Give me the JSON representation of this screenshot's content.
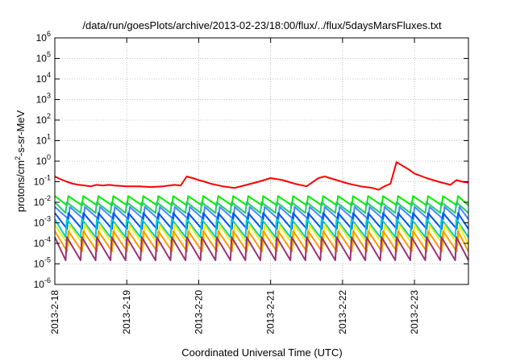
{
  "chart_data": {
    "type": "line",
    "title": "/data/run/goesPlots/archive/2013-02-23/18:00/flux/../flux/5daysMarsFluxes.txt",
    "xlabel": "Coordinated Universal Time (UTC)",
    "ylabel": "protons/cm²-s-sr-MeV",
    "ylabel_parts": {
      "pre": "protons/cm",
      "sup": "2",
      "post": "-s-sr-MeV"
    },
    "y_scale": "log",
    "ylim": [
      1e-06,
      1000000.0
    ],
    "y_ticks": [
      {
        "value": 1e-06,
        "base": "10",
        "exp": "-6"
      },
      {
        "value": 1e-05,
        "base": "10",
        "exp": "-5"
      },
      {
        "value": 0.0001,
        "base": "10",
        "exp": "-4"
      },
      {
        "value": 0.001,
        "base": "10",
        "exp": "-3"
      },
      {
        "value": 0.01,
        "base": "10",
        "exp": "-2"
      },
      {
        "value": 0.1,
        "base": "10",
        "exp": "-1"
      },
      {
        "value": 1,
        "base": "10",
        "exp": "0"
      },
      {
        "value": 10,
        "base": "10",
        "exp": "1"
      },
      {
        "value": 100,
        "base": "10",
        "exp": "2"
      },
      {
        "value": 1000,
        "base": "10",
        "exp": "3"
      },
      {
        "value": 10000,
        "base": "10",
        "exp": "4"
      },
      {
        "value": 100000,
        "base": "10",
        "exp": "5"
      },
      {
        "value": 1000000,
        "base": "10",
        "exp": "6"
      }
    ],
    "x_range": [
      "2013-02-18 00:00",
      "2013-02-23 18:00"
    ],
    "x_ticks": [
      "2013-2-18",
      "2013-2-19",
      "2013-2-20",
      "2013-2-21",
      "2013-2-22",
      "2013-2-23"
    ],
    "grid": true,
    "legend": "none",
    "series": [
      {
        "color": "#ff0000",
        "values": [
          [
            "2013-02-18 00:00",
            0.18
          ],
          [
            "2013-02-18 02:00",
            0.13
          ],
          [
            "2013-02-18 04:00",
            0.1
          ],
          [
            "2013-02-18 06:00",
            0.08
          ],
          [
            "2013-02-18 08:00",
            0.07
          ],
          [
            "2013-02-18 10:00",
            0.065
          ],
          [
            "2013-02-18 12:00",
            0.06
          ],
          [
            "2013-02-18 14:00",
            0.07
          ],
          [
            "2013-02-18 16:00",
            0.065
          ],
          [
            "2013-02-18 18:00",
            0.07
          ],
          [
            "2013-02-18 20:00",
            0.065
          ],
          [
            "2013-02-19 00:00",
            0.06
          ],
          [
            "2013-02-19 04:00",
            0.06
          ],
          [
            "2013-02-19 08:00",
            0.055
          ],
          [
            "2013-02-19 12:00",
            0.06
          ],
          [
            "2013-02-19 16:00",
            0.07
          ],
          [
            "2013-02-19 18:00",
            0.065
          ],
          [
            "2013-02-19 20:00",
            0.18
          ],
          [
            "2013-02-19 22:00",
            0.15
          ],
          [
            "2013-02-20 00:00",
            0.12
          ],
          [
            "2013-02-20 02:00",
            0.1
          ],
          [
            "2013-02-20 04:00",
            0.08
          ],
          [
            "2013-02-20 08:00",
            0.06
          ],
          [
            "2013-02-20 12:00",
            0.05
          ],
          [
            "2013-02-20 16:00",
            0.07
          ],
          [
            "2013-02-20 20:00",
            0.1
          ],
          [
            "2013-02-21 00:00",
            0.15
          ],
          [
            "2013-02-21 04:00",
            0.12
          ],
          [
            "2013-02-21 08:00",
            0.08
          ],
          [
            "2013-02-21 12:00",
            0.06
          ],
          [
            "2013-02-21 16:00",
            0.15
          ],
          [
            "2013-02-21 18:00",
            0.18
          ],
          [
            "2013-02-21 22:00",
            0.12
          ],
          [
            "2013-02-22 02:00",
            0.08
          ],
          [
            "2013-02-22 06:00",
            0.06
          ],
          [
            "2013-02-22 10:00",
            0.05
          ],
          [
            "2013-02-22 12:00",
            0.04
          ],
          [
            "2013-02-22 14:00",
            0.06
          ],
          [
            "2013-02-22 16:00",
            0.08
          ],
          [
            "2013-02-22 18:00",
            0.9
          ],
          [
            "2013-02-22 20:00",
            0.6
          ],
          [
            "2013-02-22 22:00",
            0.4
          ],
          [
            "2013-02-23 00:00",
            0.25
          ],
          [
            "2013-02-23 04:00",
            0.15
          ],
          [
            "2013-02-23 08:00",
            0.1
          ],
          [
            "2013-02-23 12:00",
            0.07
          ],
          [
            "2013-02-23 14:00",
            0.12
          ],
          [
            "2013-02-23 16:00",
            0.1
          ],
          [
            "2013-02-23 18:00",
            0.09
          ]
        ]
      },
      {
        "color": "#00ee00",
        "sawtooth": {
          "period_hours": 5,
          "max": 0.02,
          "min": 0.007
        }
      },
      {
        "color": "#22cc66",
        "sawtooth": {
          "period_hours": 5,
          "max": 0.01,
          "min": 0.003
        }
      },
      {
        "color": "#4488ff",
        "sawtooth": {
          "period_hours": 5,
          "max": 0.006,
          "min": 0.0015
        }
      },
      {
        "color": "#0055ee",
        "sawtooth": {
          "period_hours": 5,
          "max": 0.003,
          "min": 0.0005
        }
      },
      {
        "color": "#00cccc",
        "sawtooth": {
          "period_hours": 5,
          "max": 0.0015,
          "min": 0.0002
        }
      },
      {
        "color": "#eeee00",
        "sawtooth": {
          "period_hours": 5,
          "max": 0.0008,
          "min": 8e-05
        }
      },
      {
        "color": "#ff9900",
        "sawtooth": {
          "period_hours": 5,
          "max": 0.0004,
          "min": 4e-05
        }
      },
      {
        "color": "#993377",
        "sawtooth": {
          "period_hours": 5,
          "max": 0.0002,
          "min": 1.5e-05
        }
      }
    ]
  }
}
